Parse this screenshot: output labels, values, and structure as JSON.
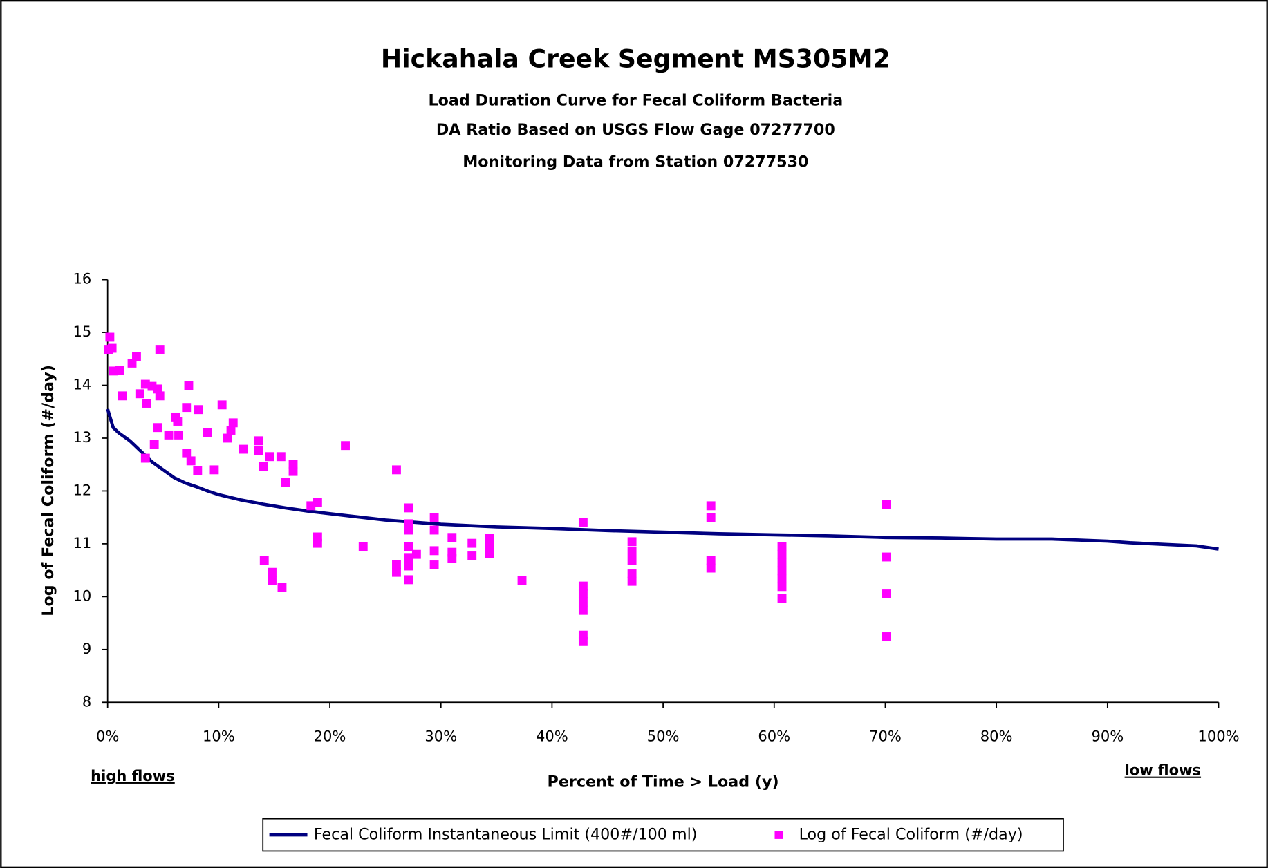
{
  "chart_data": {
    "type": "line",
    "title": "Hickahala Creek Segment MS305M2",
    "subtitles": [
      "Load Duration Curve for Fecal Coliform Bacteria",
      "DA Ratio Based on USGS Flow Gage 07277700",
      "Monitoring Data from Station 07277530"
    ],
    "x_label": "Percent of Time > Load (y)",
    "y_label": "Log of Fecal Coliform (#/day)",
    "annotations": [
      "high flows",
      "low flows"
    ],
    "xlim": [
      0,
      100
    ],
    "xticks": [
      {
        "value": 0,
        "label": "0%"
      },
      {
        "value": 10,
        "label": "10%"
      },
      {
        "value": 20,
        "label": "20%"
      },
      {
        "value": 30,
        "label": "30%"
      },
      {
        "value": 40,
        "label": "40%"
      },
      {
        "value": 50,
        "label": "50%"
      },
      {
        "value": 60,
        "label": "60%"
      },
      {
        "value": 70,
        "label": "70%"
      },
      {
        "value": 80,
        "label": "80%"
      },
      {
        "value": 90,
        "label": "90%"
      },
      {
        "value": 100,
        "label": "100%"
      }
    ],
    "ylim": [
      8,
      16
    ],
    "yticks": [
      8,
      9,
      10,
      11,
      12,
      13,
      14,
      15,
      16
    ],
    "grid": false,
    "legend": "bottom",
    "series": [
      {
        "name": "Fecal Coliform Instantaneous Limit (400#/100 ml)",
        "type": "line",
        "color": "#000080",
        "x": [
          0,
          0.5,
          1,
          2,
          3,
          4,
          5,
          6,
          7,
          8,
          9,
          10,
          12,
          14,
          16,
          18,
          20,
          25,
          30,
          35,
          40,
          45,
          50,
          55,
          60,
          65,
          70,
          75,
          80,
          85,
          90,
          92,
          95,
          98,
          100
        ],
        "values": [
          13.55,
          13.2,
          13.1,
          12.95,
          12.75,
          12.55,
          12.4,
          12.25,
          12.15,
          12.08,
          12.0,
          11.93,
          11.83,
          11.75,
          11.68,
          11.62,
          11.57,
          11.45,
          11.37,
          11.32,
          11.29,
          11.25,
          11.22,
          11.19,
          11.17,
          11.15,
          11.12,
          11.11,
          11.09,
          11.09,
          11.05,
          11.02,
          10.99,
          10.96,
          10.9
        ]
      },
      {
        "name": "Log of Fecal Coliform (#/day)",
        "type": "scatter",
        "color": "#ff00ff",
        "x": [
          0.1,
          0.2,
          0.4,
          0.5,
          1.1,
          1.3,
          2.2,
          2.6,
          2.9,
          3.4,
          3.5,
          3.4,
          4.0,
          4.2,
          4.5,
          4.7,
          4.5,
          4.7,
          5.5,
          6.1,
          6.3,
          6.4,
          7.1,
          7.1,
          7.3,
          7.5,
          8.1,
          8.2,
          9.0,
          9.6,
          10.3,
          10.8,
          11.1,
          11.3,
          12.2,
          13.6,
          13.6,
          14.0,
          14.1,
          14.6,
          14.8,
          14.8,
          15.6,
          15.7,
          16.0,
          16.7,
          16.7,
          18.3,
          18.9,
          18.9,
          18.9,
          21.4,
          23.0,
          26.0,
          26.0,
          26.0,
          27.1,
          27.1,
          27.1,
          27.1,
          27.1,
          27.1,
          27.1,
          27.8,
          29.4,
          29.4,
          29.4,
          29.4,
          31.0,
          31.0,
          31.0,
          32.8,
          32.8,
          34.4,
          34.4,
          34.4,
          37.3,
          42.8,
          42.8,
          42.8,
          42.8,
          42.8,
          42.8,
          42.8,
          47.2,
          47.2,
          47.2,
          47.2,
          47.2,
          54.3,
          54.3,
          54.3,
          54.3,
          60.7,
          60.7,
          60.7,
          60.7,
          60.7,
          60.7,
          60.7,
          70.1,
          70.1,
          70.1,
          70.1
        ],
        "values": [
          14.68,
          14.91,
          14.7,
          14.27,
          14.28,
          13.8,
          14.42,
          14.54,
          13.84,
          14.02,
          13.66,
          12.62,
          13.98,
          12.88,
          13.93,
          14.68,
          13.2,
          13.8,
          13.06,
          13.4,
          13.32,
          13.06,
          13.58,
          12.71,
          13.99,
          12.57,
          12.39,
          13.54,
          13.11,
          12.4,
          13.63,
          13.0,
          13.15,
          13.29,
          12.79,
          12.95,
          12.77,
          12.46,
          10.68,
          12.65,
          10.46,
          10.31,
          12.65,
          10.17,
          12.16,
          12.5,
          12.37,
          11.72,
          11.78,
          11.13,
          11.01,
          12.86,
          10.95,
          12.4,
          10.61,
          10.46,
          11.68,
          11.38,
          11.26,
          10.95,
          10.74,
          10.58,
          10.32,
          10.8,
          11.49,
          11.26,
          10.87,
          10.6,
          11.12,
          10.84,
          10.72,
          11.01,
          10.77,
          11.1,
          10.95,
          10.81,
          10.31,
          11.41,
          10.2,
          10.05,
          9.9,
          9.74,
          9.27,
          9.15,
          11.04,
          10.86,
          10.68,
          10.43,
          10.29,
          11.72,
          11.49,
          10.68,
          10.54,
          10.95,
          10.8,
          10.65,
          10.49,
          10.34,
          10.19,
          9.96,
          11.75,
          10.75,
          10.05,
          9.24
        ]
      }
    ]
  }
}
